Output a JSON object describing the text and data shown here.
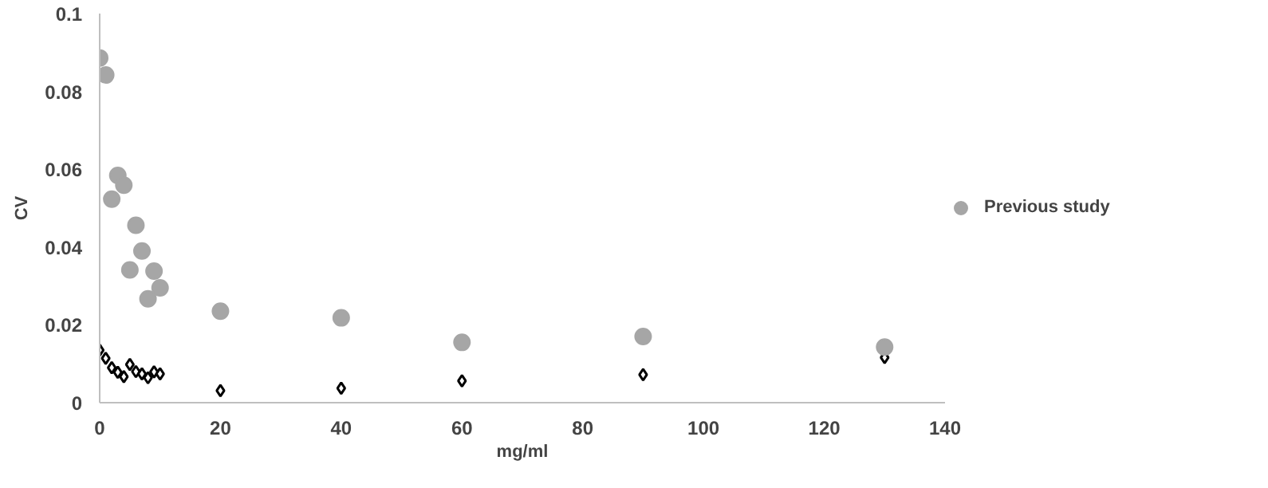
{
  "chart_data": {
    "type": "scatter",
    "xlabel": "mg/ml",
    "ylabel": "CV",
    "xlim": [
      0,
      140
    ],
    "xticks": [
      0,
      20,
      40,
      60,
      80,
      100,
      120,
      140
    ],
    "ylim": [
      0,
      0.1
    ],
    "yticks": [
      0,
      0.02,
      0.04,
      0.06,
      0.08,
      0.1
    ],
    "grid": false,
    "legend": "right",
    "series": [
      {
        "color": "#000000",
        "marker": "diamond",
        "x": [
          0,
          1,
          2,
          3,
          4,
          5,
          6,
          7,
          8,
          9,
          10,
          20,
          40,
          60,
          90,
          130
        ],
        "values": [
          0.0135,
          0.0114,
          0.009,
          0.0078,
          0.0067,
          0.0098,
          0.008,
          0.0074,
          0.0064,
          0.0079,
          0.0074,
          0.0031,
          0.0037,
          0.0056,
          0.0072,
          0.0116
        ]
      },
      {
        "name": "Previous study",
        "color": "#a6a6a6",
        "marker": "circle",
        "x": [
          0,
          1,
          2,
          3,
          4,
          5,
          6,
          7,
          8,
          9,
          10,
          20,
          40,
          60,
          90,
          130
        ],
        "values": [
          0.0886,
          0.0842,
          0.0523,
          0.0584,
          0.0559,
          0.0341,
          0.0456,
          0.039,
          0.0267,
          0.0338,
          0.0295,
          0.0235,
          0.0218,
          0.0155,
          0.017,
          0.0143
        ]
      }
    ]
  }
}
